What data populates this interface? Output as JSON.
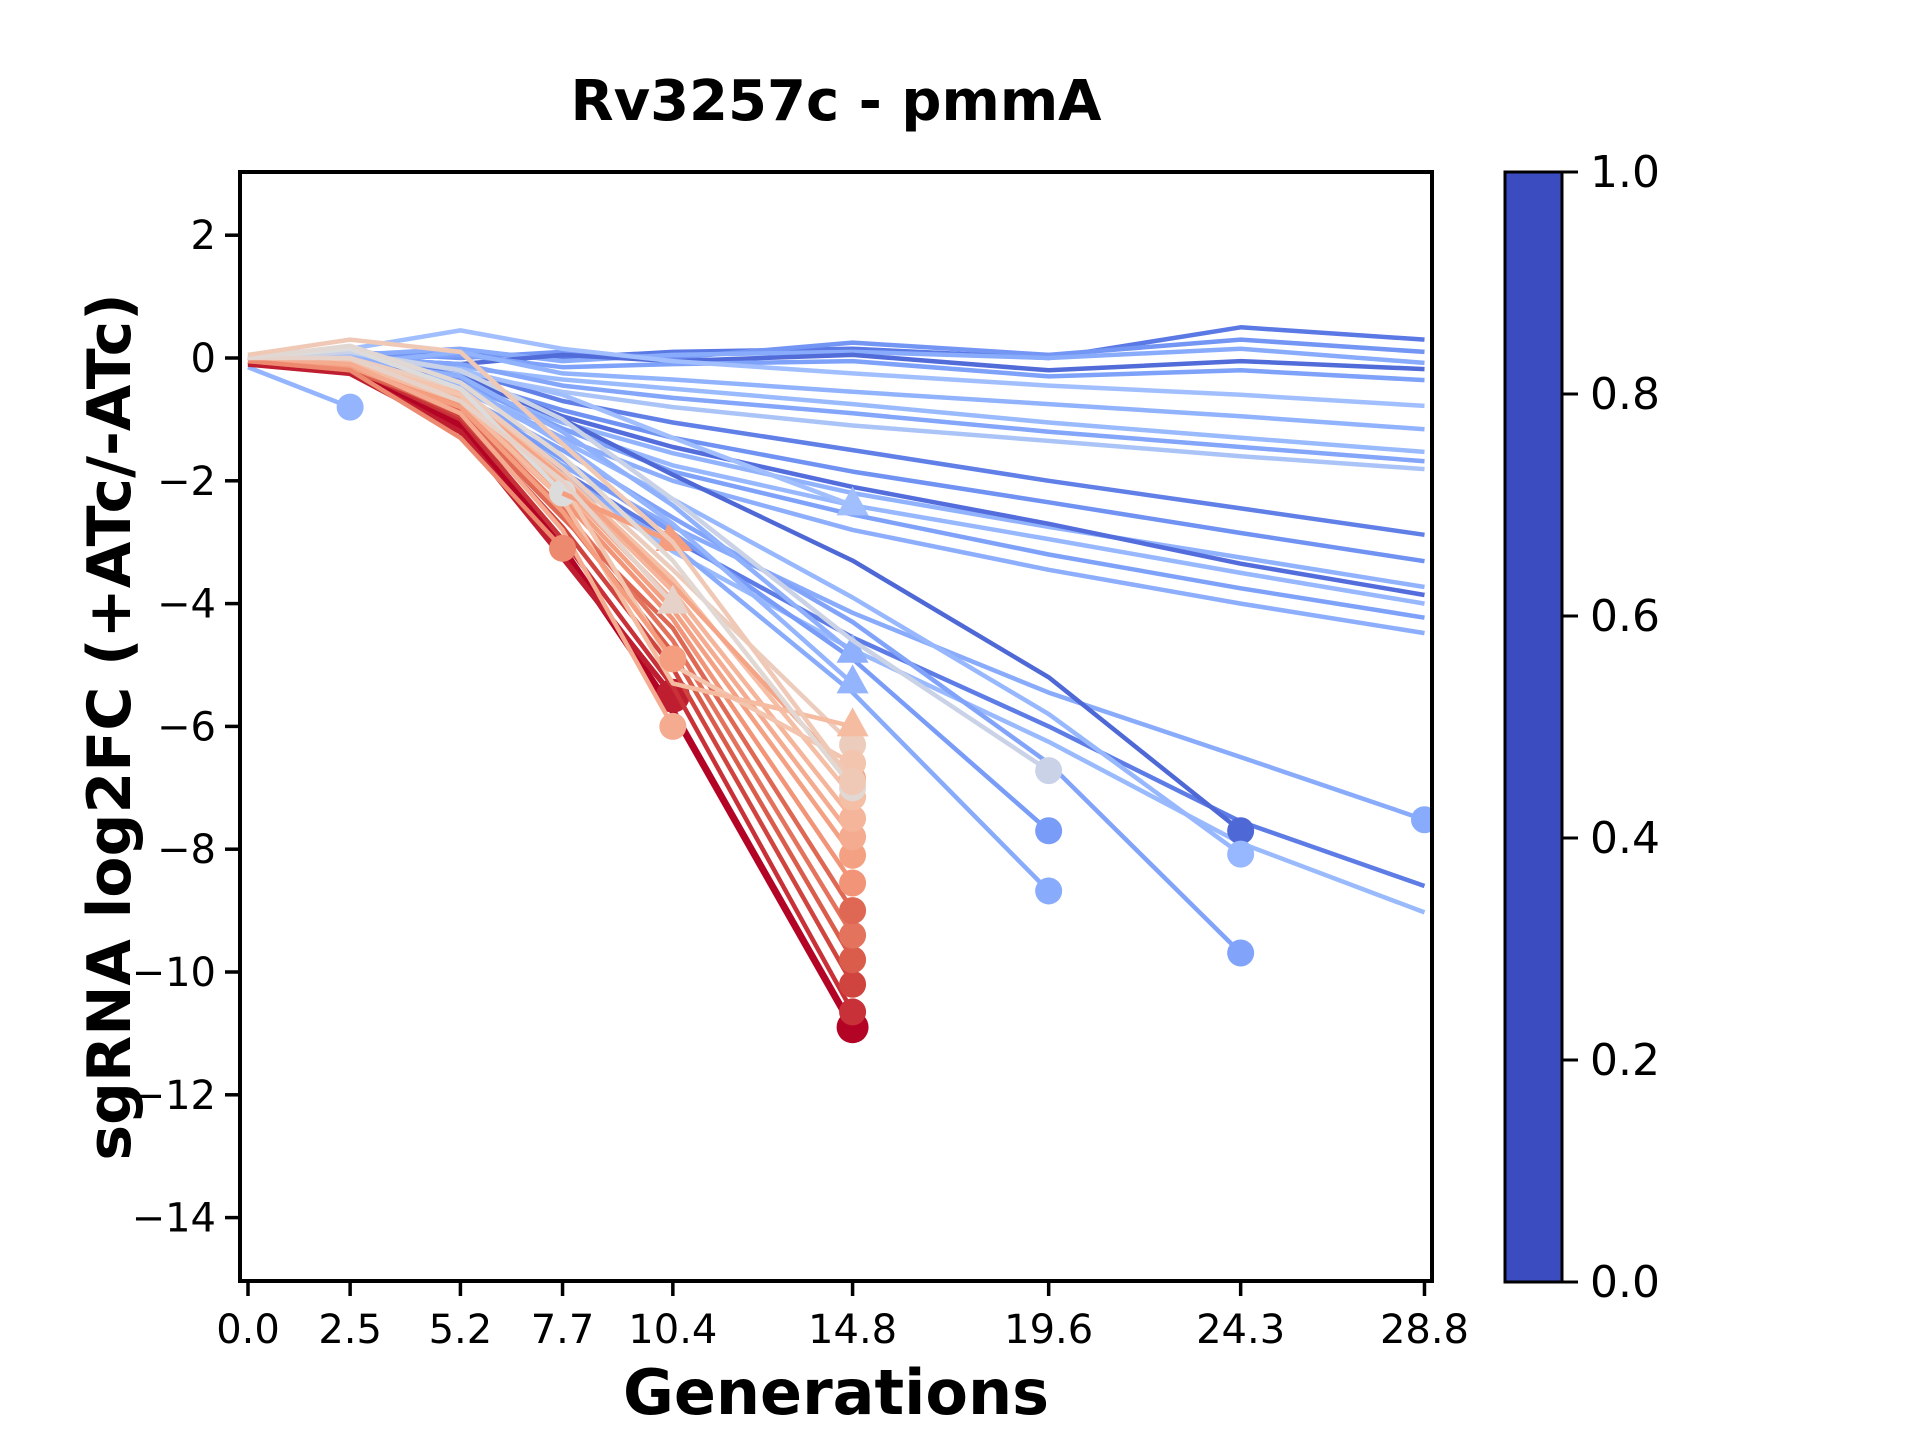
{
  "title": "Rv3257c - pmmA",
  "x_axis": {
    "label": "Generations",
    "ticks": [
      {
        "value": 0,
        "label": "0.0"
      },
      {
        "value": 2.5,
        "label": "2.5"
      },
      {
        "value": 5.2,
        "label": "5.2"
      },
      {
        "value": 7.7,
        "label": "7.7"
      },
      {
        "value": 10.4,
        "label": "10.4"
      },
      {
        "value": 14.8,
        "label": "14.8"
      },
      {
        "value": 19.6,
        "label": "19.6"
      },
      {
        "value": 24.3,
        "label": "24.3"
      },
      {
        "value": 28.8,
        "label": "28.8"
      }
    ]
  },
  "y_axis": {
    "label": "sgRNA log2FC (+ATc/-ATc)",
    "ticks": [
      {
        "value": 2,
        "label": "2"
      },
      {
        "value": 0,
        "label": "0"
      },
      {
        "value": -2,
        "label": "−2"
      },
      {
        "value": -4,
        "label": "−4"
      },
      {
        "value": -6,
        "label": "−6"
      },
      {
        "value": -8,
        "label": "−8"
      },
      {
        "value": -10,
        "label": "−10"
      },
      {
        "value": -12,
        "label": "−12"
      },
      {
        "value": -14,
        "label": "−14"
      }
    ]
  },
  "colorbar": {
    "colormap": "coolwarm",
    "range": [
      0,
      1
    ],
    "ticks": [
      {
        "value": 1.0,
        "label": "1.0"
      },
      {
        "value": 0.8,
        "label": "0.8"
      },
      {
        "value": 0.6,
        "label": "0.6"
      },
      {
        "value": 0.4,
        "label": "0.4"
      },
      {
        "value": 0.2,
        "label": "0.2"
      },
      {
        "value": 0.0,
        "label": "0.0"
      }
    ],
    "anchor_colors": [
      "#3b4cc0",
      "#5977e3",
      "#7b9ff9",
      "#9ebeff",
      "#dddcdc",
      "#f5c4ac",
      "#f49a7b",
      "#d75445",
      "#b40426"
    ]
  },
  "chart_data": {
    "type": "line",
    "xlabel": "Generations",
    "ylabel": "sgRNA log2FC (+ATc/-ATc)",
    "x": [
      0,
      2.5,
      5.2,
      7.7,
      10.4,
      14.8,
      19.6,
      24.3,
      28.8
    ],
    "xlim": [
      -0.2,
      29.0
    ],
    "ylim": [
      -15.1,
      3.0
    ],
    "grid": false,
    "marker_meaning": "marker drawn at final measured timepoint; c = colorbar value 0-1 (coolwarm)",
    "series": [
      {
        "c": 0.13,
        "values": [
          0.05,
          0,
          0.1,
          0,
          0.1,
          0.15,
          0,
          0.5,
          0.3
        ]
      },
      {
        "c": 0.22,
        "values": [
          0,
          0.1,
          0,
          0.1,
          0,
          0.25,
          0.05,
          0.3,
          0.1
        ]
      },
      {
        "c": 0.3,
        "values": [
          0,
          0.05,
          0.15,
          -0.05,
          0.05,
          0.1,
          0,
          0.15,
          -0.08
        ]
      },
      {
        "c": 0.09,
        "values": [
          -0.05,
          0,
          -0.1,
          0.05,
          -0.05,
          0.05,
          -0.2,
          -0.05,
          -0.18
        ]
      },
      {
        "c": 0.26,
        "values": [
          0,
          -0.05,
          0.05,
          -0.15,
          -0.1,
          -0.05,
          -0.3,
          -0.2,
          -0.36
        ]
      },
      {
        "c": 0.38,
        "values": [
          0.05,
          0.15,
          0.45,
          0.15,
          -0.05,
          -0.25,
          -0.45,
          -0.6,
          -0.78
        ]
      },
      {
        "c": 0.33,
        "values": [
          0,
          -0.1,
          0.1,
          -0.25,
          -0.35,
          -0.55,
          -0.75,
          -0.95,
          -1.16
        ]
      },
      {
        "c": 0.36,
        "values": [
          0,
          0.05,
          -0.15,
          -0.35,
          -0.5,
          -0.75,
          -1.05,
          -1.3,
          -1.53
        ]
      },
      {
        "c": 0.28,
        "values": [
          0,
          0,
          -0.1,
          -0.45,
          -0.65,
          -0.9,
          -1.2,
          -1.45,
          -1.68
        ]
      },
      {
        "c": 0.4,
        "values": [
          0,
          -0.1,
          -0.25,
          -0.55,
          -0.8,
          -1.1,
          -1.35,
          -1.6,
          -1.81
        ]
      },
      {
        "c": 0.15,
        "values": [
          0,
          0,
          -0.2,
          -0.7,
          -1.05,
          -1.5,
          -2.0,
          -2.45,
          -2.88
        ]
      },
      {
        "c": 0.21,
        "values": [
          0,
          -0.05,
          -0.35,
          -0.85,
          -1.3,
          -1.85,
          -2.35,
          -2.85,
          -3.31
        ]
      },
      {
        "c": 0.33,
        "values": [
          0,
          0,
          -0.45,
          -1.05,
          -1.55,
          -2.2,
          -2.75,
          -3.25,
          -3.73
        ]
      },
      {
        "c": 0.1,
        "values": [
          0,
          0.05,
          -0.3,
          -0.95,
          -1.45,
          -2.1,
          -2.7,
          -3.35,
          -3.86
        ]
      },
      {
        "c": 0.35,
        "values": [
          0,
          -0.1,
          -0.55,
          -1.15,
          -1.75,
          -2.4,
          -2.95,
          -3.5,
          -4.0
        ]
      },
      {
        "c": 0.26,
        "values": [
          0,
          0,
          -0.4,
          -1.15,
          -1.85,
          -2.55,
          -3.2,
          -3.75,
          -4.23
        ]
      },
      {
        "c": 0.31,
        "values": [
          0,
          -0.05,
          -0.5,
          -1.3,
          -2.0,
          -2.8,
          -3.45,
          -4.0,
          -4.48
        ]
      },
      {
        "c": 0.3,
        "marker": "circle",
        "values": [
          0,
          -0.1,
          -0.65,
          -1.75,
          -2.75,
          -4.15,
          -5.45,
          -6.5,
          -7.52
        ]
      },
      {
        "c": 0.14,
        "values": [
          0,
          0,
          -0.55,
          -1.85,
          -2.95,
          -4.55,
          -6.0,
          -7.55,
          -8.6
        ]
      },
      {
        "c": 0.36,
        "values": [
          0,
          -0.05,
          -0.75,
          -1.95,
          -3.15,
          -4.75,
          -6.25,
          -7.9,
          -9.03
        ]
      },
      {
        "c": 0.24,
        "marker": "circle",
        "values": [
          0,
          -0.1,
          -0.6,
          -1.65,
          -2.85,
          -4.9,
          -7.7,
          null,
          null
        ]
      },
      {
        "c": 0.3,
        "marker": "circle",
        "values": [
          0,
          0,
          -0.7,
          -1.9,
          -3.05,
          -5.45,
          -8.68,
          null,
          null
        ]
      },
      {
        "c": 0.08,
        "marker": "circle",
        "values": [
          0,
          -0.05,
          -0.3,
          -1.0,
          -1.9,
          -3.3,
          -5.2,
          -7.7,
          null
        ]
      },
      {
        "c": 0.35,
        "marker": "circle",
        "values": [
          0,
          0,
          -0.5,
          -1.35,
          -2.3,
          -3.9,
          -5.8,
          -8.08,
          null
        ]
      },
      {
        "c": 0.27,
        "marker": "circle",
        "values": [
          0,
          -0.1,
          -0.6,
          -1.5,
          -2.6,
          -4.3,
          -6.6,
          -9.69,
          null
        ]
      },
      {
        "c": 0.38,
        "marker": "triangle",
        "values": [
          0,
          0.05,
          -0.2,
          -0.6,
          -1.3,
          -2.4,
          null,
          null,
          null
        ]
      },
      {
        "c": 0.32,
        "marker": "triangle",
        "values": [
          0,
          0,
          -0.3,
          -1.2,
          -2.4,
          -4.8,
          null,
          null,
          null
        ]
      },
      {
        "c": 0.34,
        "marker": "triangle",
        "values": [
          0,
          -0.1,
          -0.4,
          -1.4,
          -2.7,
          -5.3,
          null,
          null,
          null
        ]
      },
      {
        "c": 0.34,
        "marker": "circle",
        "values": [
          -0.15,
          -0.8,
          null,
          null,
          null,
          null,
          null,
          null,
          null
        ]
      },
      {
        "c": 0.46,
        "marker": "circle",
        "values": [
          0,
          0.1,
          -0.2,
          -1.0,
          -2.3,
          -4.6,
          -6.72,
          null,
          null
        ]
      },
      {
        "c": 1.0,
        "lw": 7,
        "ms": 16,
        "marker": "circle",
        "values": [
          -0.05,
          -0.2,
          -1.1,
          -3.1,
          -5.75,
          -10.9,
          null,
          null,
          null
        ]
      },
      {
        "c": 0.96,
        "lw": 5.5,
        "ms": 17,
        "marker": "circle",
        "values": [
          -0.1,
          -0.25,
          -1.2,
          -3.25,
          -5.5,
          null,
          null,
          null,
          null
        ]
      },
      {
        "c": 0.93,
        "marker": "circle",
        "values": [
          0,
          -0.15,
          -1.0,
          -2.95,
          -5.35,
          -10.65,
          null,
          null,
          null
        ]
      },
      {
        "c": 0.9,
        "marker": "circle",
        "values": [
          0,
          -0.1,
          -0.95,
          -2.75,
          -5.05,
          -10.2,
          null,
          null,
          null
        ]
      },
      {
        "c": 0.86,
        "marker": "circle",
        "values": [
          -0.05,
          -0.2,
          -0.85,
          -2.55,
          -4.8,
          -9.8,
          null,
          null,
          null
        ]
      },
      {
        "c": 0.82,
        "marker": "circle",
        "values": [
          0,
          -0.1,
          -0.8,
          -2.45,
          -4.6,
          -9.4,
          null,
          null,
          null
        ]
      },
      {
        "c": 0.84,
        "marker": "circle",
        "values": [
          0,
          -0.15,
          -0.9,
          -2.6,
          -4.4,
          -9.0,
          null,
          null,
          null
        ]
      },
      {
        "c": 0.76,
        "marker": "circle",
        "values": [
          0,
          -0.1,
          -0.75,
          -2.3,
          -4.25,
          -8.55,
          null,
          null,
          null
        ]
      },
      {
        "c": 0.73,
        "marker": "circle",
        "values": [
          0,
          -0.05,
          -0.7,
          -2.2,
          -4.1,
          -8.1,
          null,
          null,
          null
        ]
      },
      {
        "c": 0.7,
        "marker": "circle",
        "values": [
          0,
          -0.1,
          -0.65,
          -2.1,
          -3.95,
          -7.8,
          null,
          null,
          null
        ]
      },
      {
        "c": 0.67,
        "marker": "circle",
        "values": [
          0,
          -0.15,
          -0.6,
          -2.0,
          -3.8,
          -7.5,
          null,
          null,
          null
        ]
      },
      {
        "c": 0.64,
        "marker": "circle",
        "values": [
          0,
          -0.05,
          -0.55,
          -1.9,
          -3.6,
          -7.15,
          null,
          null,
          null
        ]
      },
      {
        "c": 0.72,
        "marker": "circle",
        "values": [
          0,
          -0.1,
          -0.6,
          -1.95,
          -3.7,
          -6.85,
          null,
          null,
          null
        ]
      },
      {
        "c": 0.58,
        "marker": "circle",
        "values": [
          0,
          0,
          -0.5,
          -1.8,
          -3.45,
          -6.3,
          null,
          null,
          null
        ]
      },
      {
        "c": 0.62,
        "marker": "circle",
        "values": [
          0,
          -0.05,
          -0.6,
          -2.05,
          -5.0,
          -6.6,
          null,
          null,
          null
        ]
      },
      {
        "c": 0.65,
        "marker": "triangle",
        "values": [
          0,
          -0.1,
          -0.7,
          -2.3,
          -5.3,
          -6.0,
          null,
          null,
          null
        ]
      },
      {
        "c": 0.74,
        "marker": "circle",
        "values": [
          0,
          -0.15,
          -0.8,
          -2.5,
          -4.9,
          null,
          null,
          null,
          null
        ]
      },
      {
        "c": 0.7,
        "marker": "circle",
        "values": [
          0,
          -0.1,
          -0.9,
          -2.8,
          -6.0,
          null,
          null,
          null,
          null
        ]
      },
      {
        "c": 0.5,
        "marker": "circle",
        "values": [
          0,
          0.15,
          -0.5,
          -2.2,
          null,
          null,
          null,
          null,
          null
        ]
      },
      {
        "c": 0.78,
        "marker": "circle",
        "values": [
          -0.05,
          -0.2,
          -1.3,
          -3.1,
          null,
          null,
          null,
          null,
          null
        ]
      },
      {
        "c": 0.74,
        "lw": 5,
        "marker": "arrow",
        "values": [
          null,
          null,
          null,
          -2.2,
          -3.0,
          null,
          null,
          null,
          null
        ]
      },
      {
        "c": 0.55,
        "marker": "triangle",
        "values": [
          0,
          0,
          -0.7,
          -2.0,
          -4.0,
          null,
          null,
          null,
          null
        ]
      },
      {
        "c": 0.52,
        "marker": "circle",
        "values": [
          0,
          0.2,
          -0.4,
          -1.6,
          -3.3,
          -7.0,
          null,
          null,
          null
        ]
      },
      {
        "c": 0.6,
        "marker": "circle",
        "values": [
          0.05,
          0.3,
          0.1,
          -1.4,
          -3.0,
          -6.9,
          null,
          null,
          null
        ]
      }
    ]
  }
}
